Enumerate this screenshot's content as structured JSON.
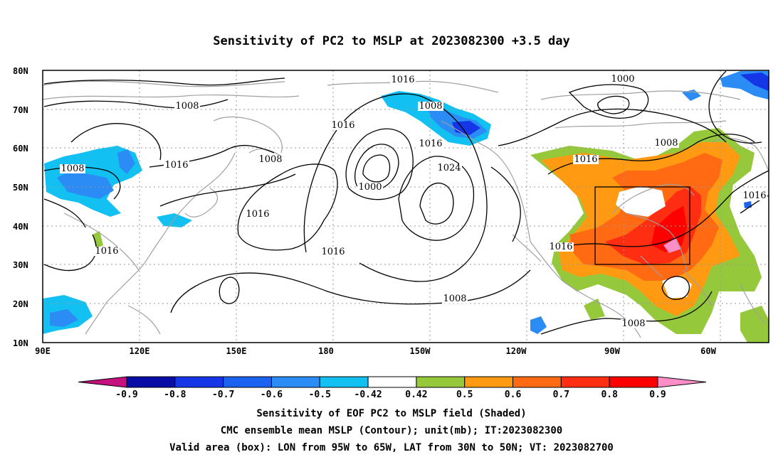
{
  "title": "Sensitivity of PC2 to MSLP at 2023082300 +3.5 day",
  "lat_labels": [
    "80N",
    "70N",
    "60N",
    "50N",
    "40N",
    "30N",
    "20N",
    "10N"
  ],
  "lon_labels": [
    "90E",
    "120E",
    "150E",
    "180",
    "150W",
    "120W",
    "90W",
    "60W"
  ],
  "contour_labels": [
    {
      "text": "1016"
    },
    {
      "text": "1008"
    },
    {
      "text": "1016"
    },
    {
      "text": "1016"
    },
    {
      "text": "1008"
    },
    {
      "text": "1008"
    },
    {
      "text": "1016"
    },
    {
      "text": "1024"
    },
    {
      "text": "1000"
    },
    {
      "text": "1016"
    },
    {
      "text": "1016"
    },
    {
      "text": "1008"
    },
    {
      "text": "1000"
    },
    {
      "text": "1008"
    },
    {
      "text": "1016"
    },
    {
      "text": "1008"
    },
    {
      "text": "1016"
    },
    {
      "text": "1016"
    },
    {
      "text": "1008"
    },
    {
      "text": "1016"
    }
  ],
  "colorbar": {
    "labels": [
      "-0.9",
      "-0.8",
      "-0.7",
      "-0.6",
      "-0.5",
      "-0.42",
      "0.42",
      "0.5",
      "0.6",
      "0.7",
      "0.8",
      "0.9"
    ],
    "colors": [
      "#c4117d",
      "#0a0ca6",
      "#1436e6",
      "#1c62f0",
      "#2a8cf4",
      "#12c0f2",
      "#ffffff",
      "#96c83c",
      "#ff9a12",
      "#ff6a12",
      "#ff2e12",
      "#ff0000",
      "#ff8ec8"
    ]
  },
  "captions": [
    "Sensitivity of EOF PC2 to MSLP field (Shaded)",
    "CMC ensemble mean MSLP (Contour); unit(mb); IT:2023082300",
    "Valid area (box): LON from 95W to 65W, LAT from 30N to 50N; VT: 2023082700"
  ],
  "colors": {
    "coast": "#a0a0a0",
    "contour": "#000000",
    "grid": "#9a9a9a"
  }
}
